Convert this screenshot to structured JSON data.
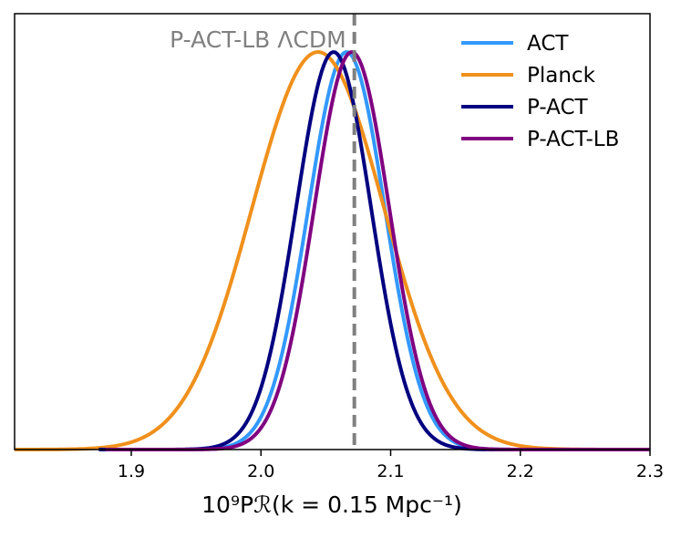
{
  "chart_data": {
    "type": "line",
    "xlabel": "10⁹Pℛ(k = 0.15 Mpc⁻¹)",
    "ylabel": "",
    "xlim": [
      1.81,
      2.3
    ],
    "ylim": [
      0,
      1.0
    ],
    "xticks": [
      "1.9",
      "2.0",
      "2.1",
      "2.2",
      "2.3"
    ],
    "xtick_values": [
      1.9,
      2.0,
      2.1,
      2.2,
      2.3
    ],
    "grid": false,
    "legend_placement": "top-right",
    "annotation": {
      "text": "P-ACT-LB ΛCDM",
      "vline_x": 2.072,
      "line_style": "dashed",
      "color": "#808080"
    },
    "series": [
      {
        "name": "ACT",
        "color": "#3399ff",
        "mean": 2.066,
        "sigma": 0.0295,
        "x_start": 1.88,
        "x_end": 2.3
      },
      {
        "name": "Planck",
        "color": "#f0901c",
        "mean": 2.044,
        "sigma": 0.051,
        "x_start": 1.81,
        "x_end": 2.3
      },
      {
        "name": "P-ACT",
        "color": "#000080",
        "mean": 2.056,
        "sigma": 0.029,
        "x_start": 1.875,
        "x_end": 2.3
      },
      {
        "name": "P-ACT-LB",
        "color": "#800080",
        "mean": 2.07,
        "sigma": 0.029,
        "x_start": 1.88,
        "x_end": 2.3
      }
    ]
  }
}
